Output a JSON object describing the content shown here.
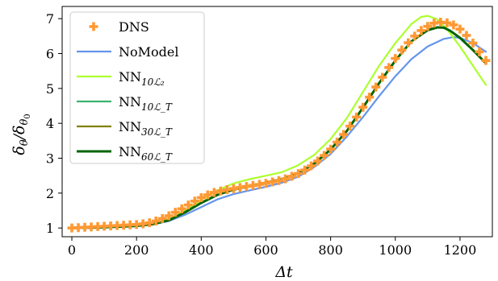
{
  "chart_data": {
    "type": "line",
    "xlabel": "Δt",
    "ylabel": "δθ/δθ0",
    "xlim": [
      -30,
      1300
    ],
    "ylim": [
      0.75,
      7.35
    ],
    "xticks": [
      0,
      200,
      400,
      600,
      800,
      1000,
      1200
    ],
    "yticks": [
      1,
      2,
      3,
      4,
      5,
      6,
      7
    ],
    "grid": false,
    "legend_position": "top-left",
    "series": [
      {
        "name": "DNS",
        "label_main": "DNS",
        "label_sub": "",
        "style": "markers",
        "color": "#ff9933",
        "x": [
          0,
          20,
          40,
          60,
          80,
          100,
          120,
          140,
          160,
          180,
          200,
          220,
          240,
          260,
          280,
          300,
          320,
          340,
          360,
          380,
          400,
          420,
          440,
          460,
          480,
          500,
          520,
          540,
          560,
          580,
          600,
          620,
          640,
          660,
          680,
          700,
          720,
          740,
          760,
          780,
          800,
          820,
          840,
          860,
          880,
          900,
          920,
          940,
          960,
          980,
          1000,
          1020,
          1040,
          1060,
          1080,
          1100,
          1120,
          1140,
          1160,
          1180,
          1200,
          1220,
          1240,
          1260,
          1280
        ],
        "y": [
          1.0,
          1.01,
          1.02,
          1.03,
          1.04,
          1.05,
          1.06,
          1.07,
          1.08,
          1.09,
          1.1,
          1.12,
          1.15,
          1.2,
          1.27,
          1.35,
          1.45,
          1.55,
          1.66,
          1.77,
          1.87,
          1.95,
          2.02,
          2.06,
          2.1,
          2.13,
          2.16,
          2.19,
          2.22,
          2.25,
          2.28,
          2.32,
          2.36,
          2.41,
          2.48,
          2.56,
          2.66,
          2.78,
          2.92,
          3.08,
          3.26,
          3.46,
          3.68,
          3.92,
          4.18,
          4.46,
          4.75,
          5.04,
          5.32,
          5.6,
          5.86,
          6.1,
          6.31,
          6.5,
          6.66,
          6.78,
          6.87,
          6.9,
          6.88,
          6.82,
          6.7,
          6.52,
          6.3,
          6.05,
          5.8
        ]
      },
      {
        "name": "NoModel",
        "label_main": "NoModel",
        "label_sub": "",
        "style": "line",
        "color": "#6495ed",
        "x": [
          0,
          100,
          200,
          250,
          300,
          350,
          400,
          450,
          500,
          550,
          600,
          650,
          700,
          750,
          800,
          850,
          900,
          950,
          1000,
          1050,
          1100,
          1150,
          1180,
          1200,
          1240,
          1280
        ],
        "y": [
          1.0,
          1.02,
          1.06,
          1.1,
          1.2,
          1.38,
          1.6,
          1.82,
          1.97,
          2.08,
          2.18,
          2.3,
          2.47,
          2.75,
          3.12,
          3.62,
          4.18,
          4.78,
          5.35,
          5.84,
          6.2,
          6.42,
          6.47,
          6.45,
          6.3,
          6.05
        ]
      },
      {
        "name": "NN10L2",
        "label_main": "NN",
        "label_sub": "10ℒ₂",
        "style": "line",
        "color": "#adff2f",
        "x": [
          0,
          100,
          200,
          250,
          300,
          350,
          400,
          450,
          500,
          550,
          600,
          650,
          700,
          750,
          800,
          850,
          900,
          950,
          1000,
          1050,
          1080,
          1100,
          1130,
          1160,
          1200,
          1240,
          1280
        ],
        "y": [
          1.0,
          1.02,
          1.06,
          1.12,
          1.25,
          1.5,
          1.8,
          2.08,
          2.28,
          2.4,
          2.5,
          2.6,
          2.8,
          3.1,
          3.55,
          4.15,
          4.9,
          5.65,
          6.3,
          6.85,
          7.05,
          7.08,
          6.98,
          6.7,
          6.2,
          5.65,
          5.1
        ]
      },
      {
        "name": "NN10LT",
        "label_main": "NN",
        "label_sub": "10ℒ_T",
        "style": "line",
        "color": "#3cb371",
        "x": [
          0,
          100,
          200,
          250,
          300,
          350,
          400,
          450,
          500,
          550,
          600,
          650,
          700,
          750,
          800,
          850,
          900,
          950,
          1000,
          1050,
          1100,
          1130,
          1150,
          1170,
          1200,
          1240,
          1280
        ],
        "y": [
          1.0,
          1.02,
          1.06,
          1.11,
          1.22,
          1.45,
          1.72,
          1.95,
          2.1,
          2.2,
          2.3,
          2.4,
          2.57,
          2.85,
          3.25,
          3.78,
          4.45,
          5.15,
          5.8,
          6.35,
          6.67,
          6.75,
          6.74,
          6.65,
          6.45,
          6.1,
          5.72
        ]
      },
      {
        "name": "NN30LT",
        "label_main": "NN",
        "label_sub": "30ℒ_T",
        "style": "line",
        "color": "#808000",
        "x": [
          0,
          100,
          200,
          250,
          300,
          350,
          400,
          450,
          500,
          550,
          600,
          650,
          700,
          750,
          800,
          850,
          900,
          950,
          1000,
          1050,
          1100,
          1130,
          1150,
          1170,
          1200,
          1240,
          1280
        ],
        "y": [
          1.0,
          1.02,
          1.06,
          1.11,
          1.22,
          1.45,
          1.72,
          1.95,
          2.1,
          2.2,
          2.3,
          2.4,
          2.57,
          2.85,
          3.25,
          3.78,
          4.45,
          5.15,
          5.8,
          6.35,
          6.67,
          6.75,
          6.74,
          6.65,
          6.45,
          6.1,
          5.72
        ]
      },
      {
        "name": "NN60LT",
        "label_main": "NN",
        "label_sub": "60ℒ_T",
        "style": "line",
        "color": "#006400",
        "x": [
          0,
          100,
          200,
          250,
          300,
          350,
          400,
          450,
          500,
          550,
          600,
          650,
          700,
          750,
          800,
          850,
          900,
          950,
          1000,
          1050,
          1100,
          1130,
          1150,
          1170,
          1200,
          1240,
          1280
        ],
        "y": [
          1.0,
          1.02,
          1.06,
          1.11,
          1.22,
          1.45,
          1.72,
          1.95,
          2.1,
          2.2,
          2.3,
          2.4,
          2.57,
          2.85,
          3.25,
          3.78,
          4.45,
          5.15,
          5.8,
          6.35,
          6.67,
          6.75,
          6.74,
          6.65,
          6.45,
          6.1,
          5.72
        ]
      }
    ]
  }
}
